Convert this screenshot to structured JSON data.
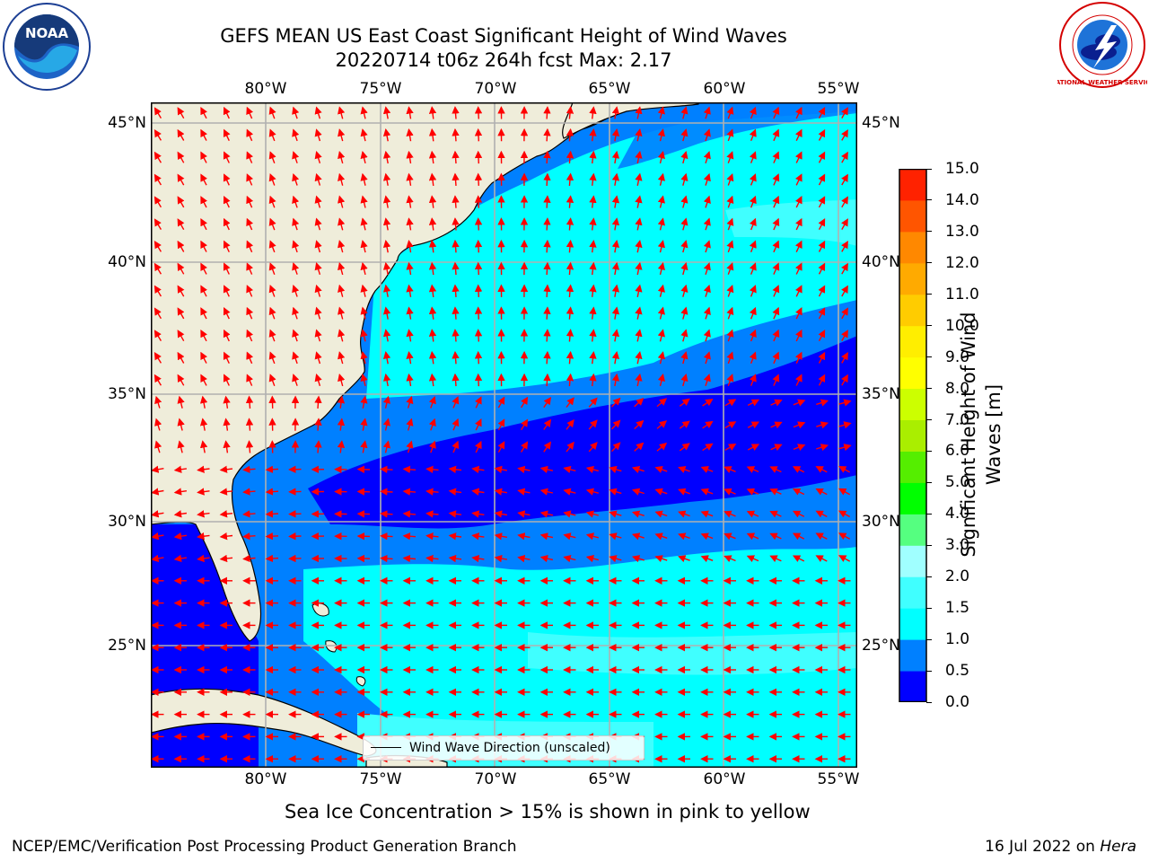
{
  "title": {
    "line1": "GEFS MEAN US East Coast Significant Height of Wind Waves",
    "line2": "20220714 t06z 264h fcst   Max: 2.17"
  },
  "logos": {
    "noaa_text": "NOAA",
    "nws_text": "NATIONAL WEATHER SERVICE"
  },
  "map": {
    "type": "filled-contour map with wind-wave direction arrows",
    "region": "US East Coast / western North Atlantic",
    "lon_range": [
      -85,
      -54.5
    ],
    "lat_range": [
      20.5,
      46.5
    ],
    "lon_ticks": [
      "80°W",
      "75°W",
      "70°W",
      "65°W",
      "60°W",
      "55°W"
    ],
    "lat_ticks": [
      "45°N",
      "40°N",
      "35°N",
      "30°N",
      "25°N"
    ],
    "grid": true,
    "land_color": "#efedda",
    "arrow_color": "#ff0000",
    "legend": {
      "label": "Wind Wave Direction (unscaled)",
      "location": "bottom-center"
    }
  },
  "colorbar": {
    "label": "Significant Height of Wind Waves [m]",
    "tick_labels": [
      "0.0",
      "0.5",
      "1.0",
      "1.5",
      "2.0",
      "3.0",
      "4.0",
      "5.0",
      "6.0",
      "7.0",
      "8.0",
      "9.0",
      "10.0",
      "11.0",
      "12.0",
      "13.0",
      "14.0",
      "15.0"
    ],
    "colors": [
      "#0000ff",
      "#0080ff",
      "#00ffff",
      "#40ffff",
      "#a0ffff",
      "#55ff80",
      "#00ff00",
      "#55ee00",
      "#aaee00",
      "#ccff00",
      "#ffff00",
      "#ffee00",
      "#ffcc00",
      "#ffaa00",
      "#ff8800",
      "#ff5500",
      "#ff2200"
    ]
  },
  "note": "Sea Ice Concentration > 15% is shown in pink to yellow",
  "footer": {
    "left": "NCEP/EMC/Verification Post Processing Product Generation Branch",
    "right_prefix": "16 Jul 2022 on ",
    "right_machine": "Hera"
  }
}
